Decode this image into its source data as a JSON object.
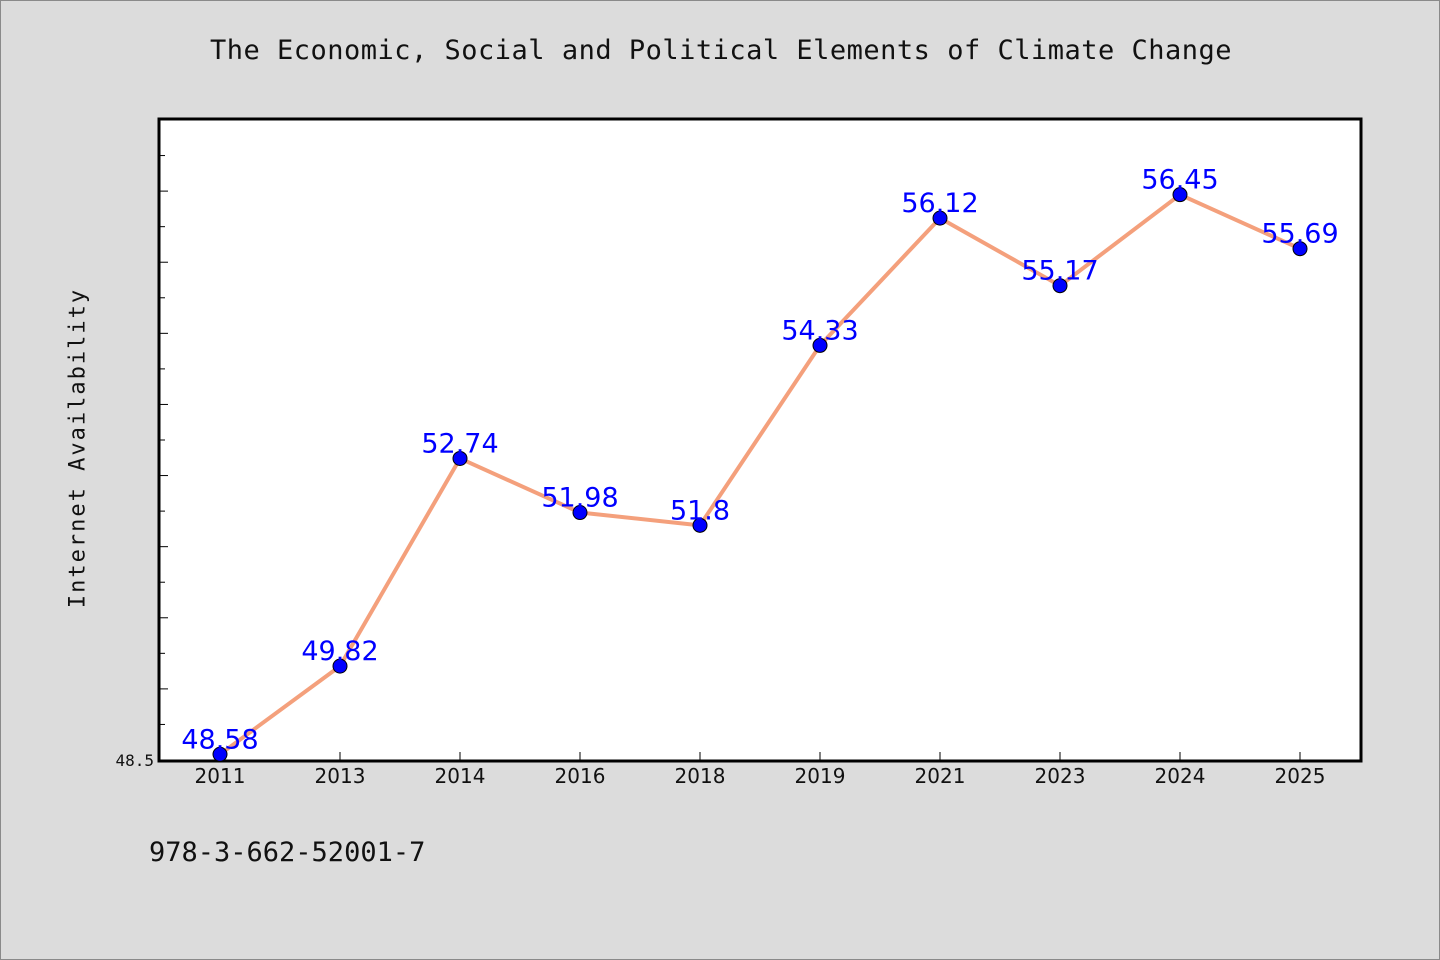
{
  "chart_data": {
    "type": "line",
    "title": "The Economic, Social and Political Elements of Climate Change",
    "xlabel": "",
    "ylabel": "Internet Availability",
    "categories": [
      "2011",
      "2013",
      "2014",
      "2016",
      "2018",
      "2019",
      "2021",
      "2023",
      "2024",
      "2025"
    ],
    "series": [
      {
        "values": [
          48.58,
          49.82,
          52.74,
          51.98,
          51.8,
          54.33,
          56.12,
          55.17,
          56.45,
          55.69
        ]
      }
    ],
    "data_labels": [
      "48.58",
      "49.82",
      "52.74",
      "51.98",
      "51.8",
      "54.33",
      "56.12",
      "55.17",
      "56.45",
      "55.69"
    ],
    "ylim": [
      48.5,
      57.5
    ],
    "y_tick_labels": [
      "48.5"
    ],
    "grid": false,
    "line_color": "#f4a07c",
    "marker_color": "#0000ff",
    "label_color": "#0000ff"
  },
  "footer": {
    "id_text": "978-3-662-52001-7"
  }
}
